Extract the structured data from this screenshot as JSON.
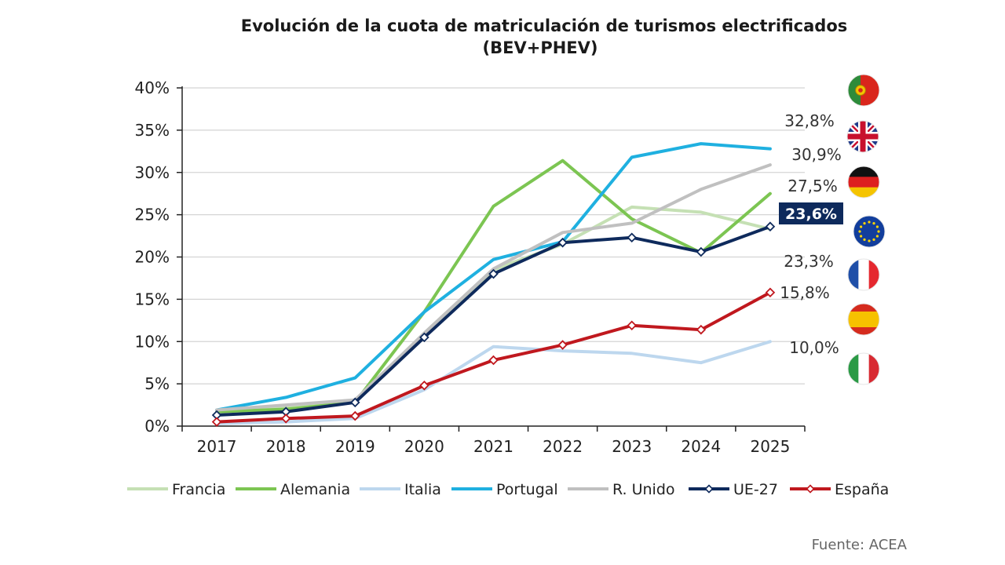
{
  "chart_data": {
    "type": "line",
    "title_line1": "Evolución de la cuota de matriculación de turismos electrificados",
    "title_line2": "(BEV+PHEV)",
    "categories": [
      "2017",
      "2018",
      "2019",
      "2020",
      "2021",
      "2022",
      "2023",
      "2024",
      "2025"
    ],
    "ylim": [
      0,
      40
    ],
    "yticks": [
      "0%",
      "5%",
      "10%",
      "15%",
      "20%",
      "25%",
      "30%",
      "35%",
      "40%"
    ],
    "grid": true,
    "series": [
      {
        "name": "Francia",
        "color": "#c5e0b4",
        "marker": false,
        "values": [
          1.8,
          2.3,
          2.8,
          11.0,
          18.5,
          21.5,
          25.9,
          25.3,
          23.3
        ],
        "end_label": "23,3%"
      },
      {
        "name": "Alemania",
        "color": "#7cc552",
        "marker": false,
        "values": [
          1.7,
          2.0,
          2.8,
          13.5,
          26.0,
          31.4,
          24.5,
          20.5,
          27.5
        ],
        "end_label": "27,5%"
      },
      {
        "name": "Italia",
        "color": "#bdd7ee",
        "marker": false,
        "values": [
          0.3,
          0.5,
          0.9,
          4.3,
          9.4,
          8.9,
          8.6,
          7.5,
          10.0
        ],
        "end_label": "10,0%"
      },
      {
        "name": "Portugal",
        "color": "#1fb0e0",
        "marker": false,
        "values": [
          1.9,
          3.4,
          5.7,
          13.5,
          19.7,
          21.8,
          31.8,
          33.4,
          32.8
        ],
        "end_label": "32,8%"
      },
      {
        "name": "R. Unido",
        "color": "#c0c0c0",
        "marker": false,
        "values": [
          1.9,
          2.5,
          3.1,
          11.0,
          18.6,
          22.9,
          24.0,
          28.0,
          30.9
        ],
        "end_label": "30,9%"
      },
      {
        "name": "UE-27",
        "color": "#0e2a5c",
        "marker": true,
        "values": [
          1.3,
          1.7,
          2.8,
          10.5,
          18.0,
          21.7,
          22.3,
          20.6,
          23.6
        ],
        "end_label": "23,6%",
        "highlight": true
      },
      {
        "name": "España",
        "color": "#c0181e",
        "marker": true,
        "values": [
          0.5,
          0.9,
          1.2,
          4.8,
          7.8,
          9.6,
          11.9,
          11.4,
          15.8
        ],
        "end_label": "15,8%"
      }
    ],
    "flags": [
      "portugal-flag",
      "uk-flag",
      "germany-flag",
      "eu-flag",
      "france-flag",
      "spain-flag",
      "italy-flag"
    ],
    "source": "Fuente: ACEA"
  }
}
